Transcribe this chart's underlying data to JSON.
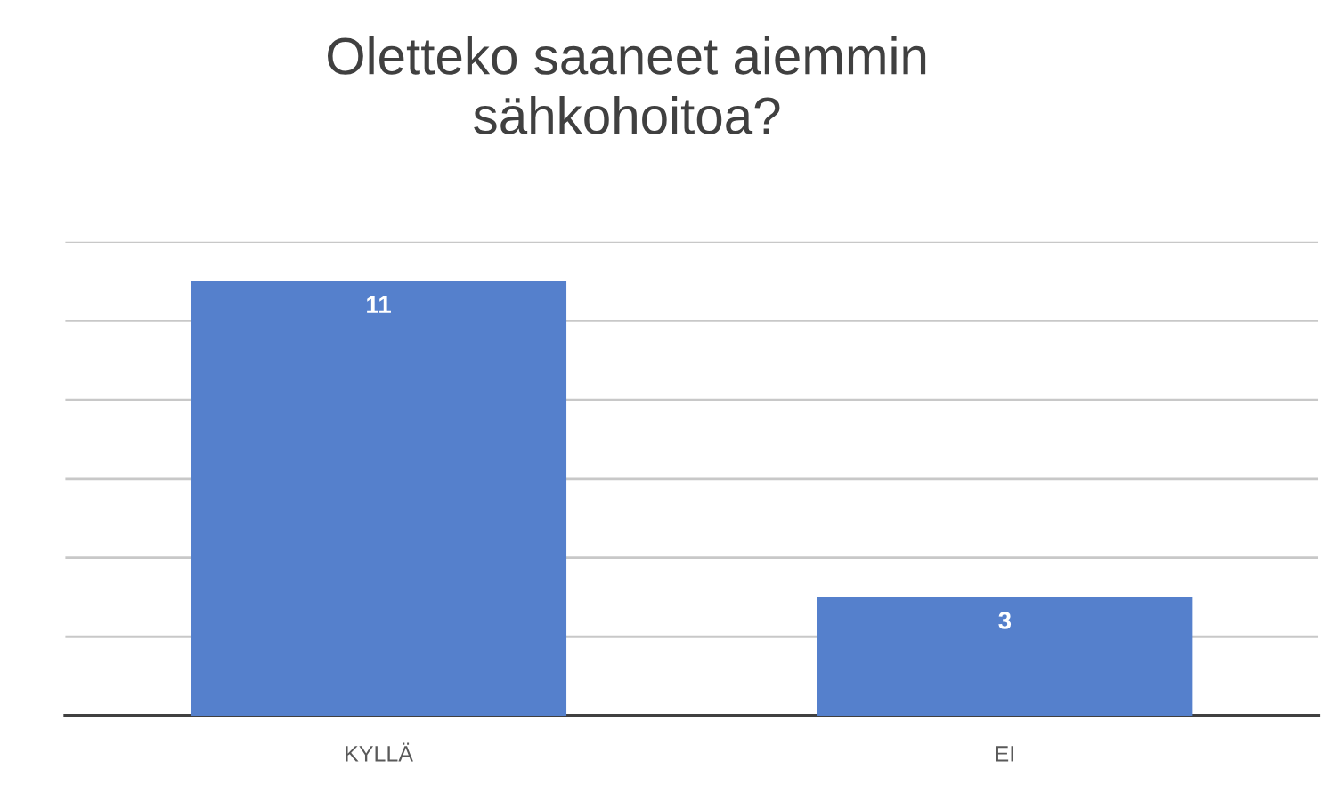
{
  "chart_data": {
    "type": "bar",
    "title": "Oletteko saaneet aiemmin\nsähkohoitoa?",
    "categories": [
      "KYLLÄ",
      "EI"
    ],
    "values": [
      11,
      3
    ],
    "color": "#5580cc",
    "data_labels": true,
    "ylim": [
      0,
      12
    ],
    "yticks": [
      {
        "value": 0,
        "label": null
      },
      {
        "value": 2,
        "label": null
      },
      {
        "value": 4,
        "label": null
      },
      {
        "value": 6,
        "label": null
      },
      {
        "value": 8,
        "label": null
      },
      {
        "value": 10,
        "label": null
      },
      {
        "value": 12,
        "label": null
      }
    ],
    "tick_labels": "x",
    "grid": "y",
    "legend": false
  }
}
